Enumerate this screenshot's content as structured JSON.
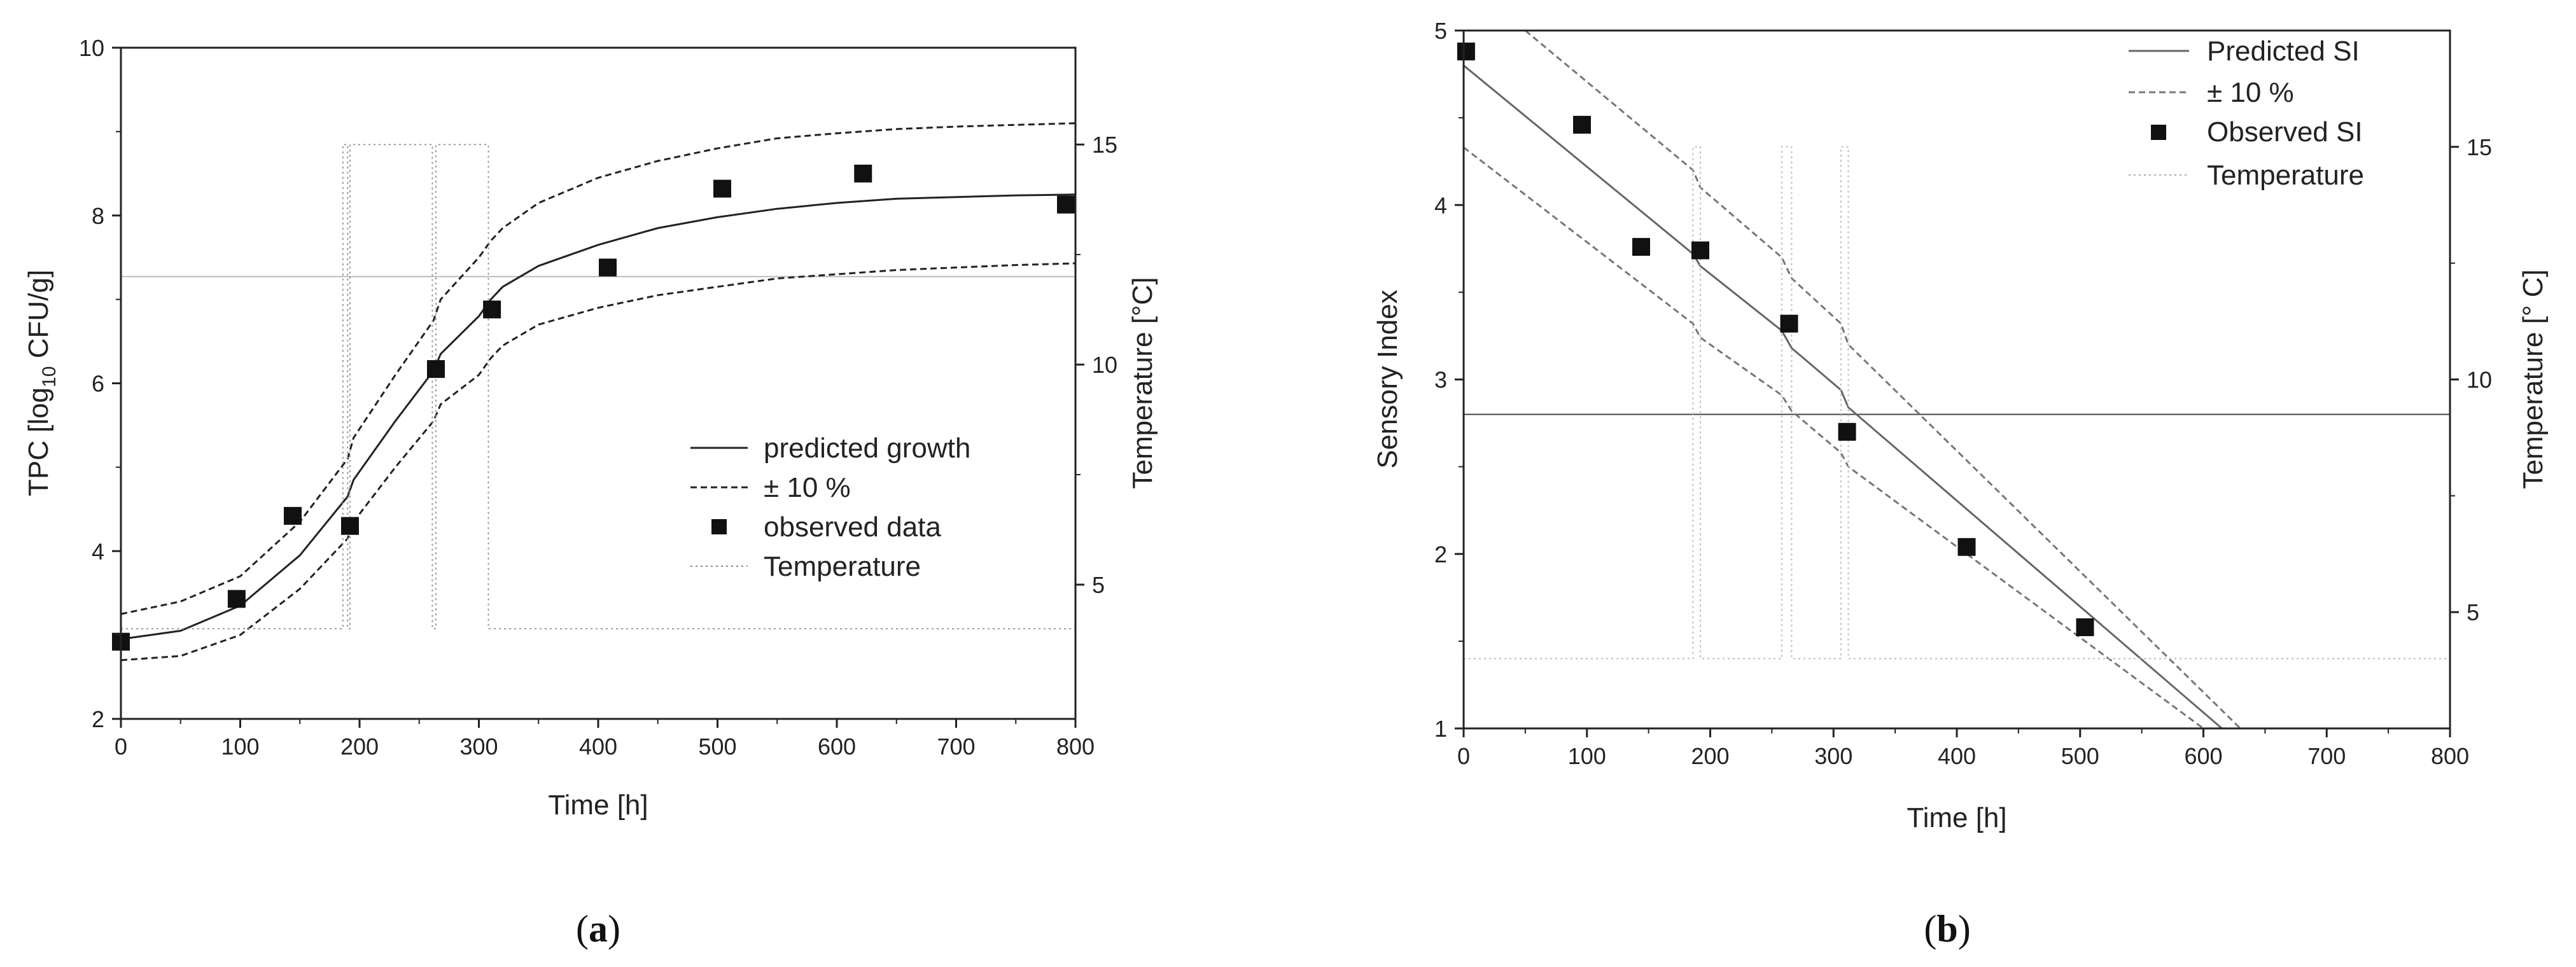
{
  "chart_data": [
    {
      "type": "line",
      "panel": "a",
      "caption_open": "(",
      "caption_letter": "a",
      "caption_close": ")",
      "xlabel": "Time [h]",
      "ylabel_main": "TPC [log",
      "ylabel_sub": "10",
      "ylabel_rest": " CFU/g]",
      "y2label": "Temperature [°C]",
      "xlim": [
        0,
        800
      ],
      "ylim": [
        2,
        10
      ],
      "y2lim": [
        1.95,
        17.2
      ],
      "xticks": [
        "0",
        "100",
        "200",
        "300",
        "400",
        "500",
        "600",
        "700",
        "800"
      ],
      "yticks": [
        "2",
        "4",
        "6",
        "8",
        "10"
      ],
      "y2ticks": [
        "5",
        "10",
        "15"
      ],
      "legend_position": "center-right",
      "legend": [
        "predicted growth",
        "± 10 %",
        "observed data",
        "Temperature"
      ],
      "series": [
        {
          "name": "predicted growth",
          "x": [
            0,
            50,
            100,
            150,
            190,
            195,
            230,
            262,
            268,
            300,
            310,
            320,
            350,
            400,
            450,
            500,
            550,
            600,
            650,
            700,
            750,
            800
          ],
          "y": [
            2.95,
            3.05,
            3.35,
            3.95,
            4.65,
            4.85,
            5.55,
            6.15,
            6.35,
            6.8,
            7.0,
            7.15,
            7.4,
            7.65,
            7.85,
            7.98,
            8.08,
            8.15,
            8.2,
            8.22,
            8.24,
            8.25
          ]
        },
        {
          "name": "± 10 % upper",
          "x": [
            0,
            50,
            100,
            150,
            190,
            195,
            230,
            262,
            268,
            300,
            310,
            320,
            350,
            400,
            450,
            500,
            550,
            600,
            650,
            700,
            750,
            800
          ],
          "y": [
            3.25,
            3.4,
            3.7,
            4.35,
            5.1,
            5.35,
            6.1,
            6.75,
            7.0,
            7.5,
            7.7,
            7.85,
            8.15,
            8.45,
            8.65,
            8.8,
            8.92,
            8.98,
            9.03,
            9.06,
            9.08,
            9.1
          ]
        },
        {
          "name": "± 10 % lower",
          "x": [
            0,
            50,
            100,
            150,
            190,
            195,
            230,
            262,
            268,
            300,
            310,
            320,
            350,
            400,
            450,
            500,
            550,
            600,
            650,
            700,
            750,
            800
          ],
          "y": [
            2.7,
            2.75,
            3.0,
            3.55,
            4.15,
            4.35,
            5.0,
            5.55,
            5.75,
            6.1,
            6.3,
            6.45,
            6.7,
            6.9,
            7.05,
            7.15,
            7.25,
            7.3,
            7.35,
            7.38,
            7.41,
            7.43
          ]
        },
        {
          "name": "observed data",
          "x": [
            0,
            97,
            144,
            192,
            264,
            311,
            408,
            504,
            622,
            792
          ],
          "y": [
            2.92,
            3.43,
            4.42,
            4.3,
            6.17,
            6.88,
            7.38,
            8.32,
            8.5,
            8.13
          ]
        },
        {
          "name": "Temperature",
          "x": [
            0,
            186,
            186,
            190,
            190,
            192,
            192,
            261,
            261,
            264,
            264,
            308,
            308,
            311,
            311,
            800
          ],
          "y": [
            4,
            4,
            15,
            15,
            4,
            4,
            15,
            15,
            4,
            4,
            15,
            15,
            4,
            4,
            4,
            4
          ],
          "axis": "right"
        }
      ]
    },
    {
      "type": "line",
      "panel": "b",
      "caption_open": "(",
      "caption_letter": "b",
      "caption_close": ")",
      "xlabel": "Time [h]",
      "ylabel": "Sensory Index",
      "y2label": "Temperature [° C]",
      "xlim": [
        0,
        800
      ],
      "ylim": [
        1,
        5
      ],
      "y2lim": [
        2.5,
        17.5
      ],
      "xticks": [
        "0",
        "100",
        "200",
        "300",
        "400",
        "500",
        "600",
        "700",
        "800"
      ],
      "yticks": [
        "1",
        "2",
        "3",
        "4",
        "5"
      ],
      "y2ticks": [
        "5",
        "10",
        "15"
      ],
      "legend_position": "top-right",
      "legend": [
        "Predicted SI",
        "± 10 %",
        "Observed SI",
        "Temperature"
      ],
      "series": [
        {
          "name": "Predicted SI",
          "x": [
            0,
            186,
            192,
            258,
            266,
            306,
            312,
            615
          ],
          "y": [
            4.8,
            3.72,
            3.65,
            3.28,
            3.18,
            2.94,
            2.84,
            1.0
          ]
        },
        {
          "name": "± 10 % upper",
          "x": [
            50,
            186,
            192,
            258,
            266,
            306,
            312,
            630
          ],
          "y": [
            5.0,
            4.2,
            4.1,
            3.7,
            3.58,
            3.32,
            3.2,
            1.0
          ]
        },
        {
          "name": "± 10 % lower",
          "x": [
            0,
            186,
            192,
            258,
            266,
            306,
            312,
            600
          ],
          "y": [
            4.33,
            3.32,
            3.24,
            2.91,
            2.82,
            2.58,
            2.5,
            1.0
          ]
        },
        {
          "name": "Observed SI",
          "x": [
            2,
            96,
            144,
            192,
            264,
            311,
            408,
            504
          ],
          "y": [
            4.88,
            4.46,
            3.76,
            3.74,
            3.32,
            2.7,
            2.04,
            1.58
          ]
        },
        {
          "name": "Temperature",
          "x": [
            0,
            186,
            186,
            192,
            192,
            258,
            258,
            266,
            266,
            306,
            306,
            312,
            312,
            800
          ],
          "y": [
            4,
            4,
            15,
            15,
            4,
            4,
            15,
            15,
            4,
            4,
            15,
            15,
            4,
            4
          ],
          "axis": "right"
        }
      ],
      "reference_line_y": 2.8
    }
  ]
}
